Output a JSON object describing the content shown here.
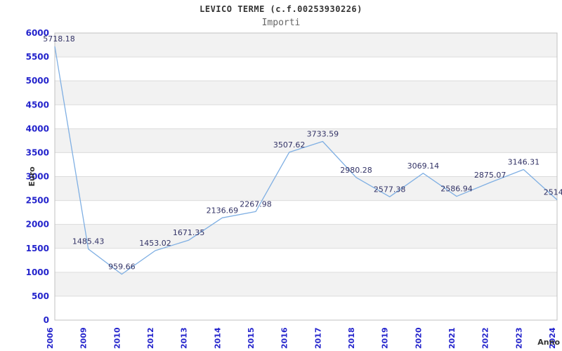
{
  "chart_data": {
    "type": "line",
    "title": "LEVICO TERME (c.f.00253930226)",
    "subtitle": "Importi",
    "xlabel": "Anno",
    "ylabel": "Euro",
    "categories": [
      "2006",
      "2009",
      "2010",
      "2012",
      "2013",
      "2014",
      "2015",
      "2016",
      "2017",
      "2018",
      "2019",
      "2020",
      "2021",
      "2022",
      "2023",
      "2024"
    ],
    "values": [
      5718.18,
      1485.43,
      959.66,
      1453.02,
      1671.35,
      2136.69,
      2267.98,
      3507.62,
      3733.59,
      2980.28,
      2577.38,
      3069.14,
      2586.94,
      2875.07,
      3146.31,
      2514.0
    ],
    "point_labels": [
      "5718.18",
      "1485.43",
      "959.66",
      "1453.02",
      "1671.35",
      "2136.69",
      "2267.98",
      "3507.62",
      "3733.59",
      "2980.28",
      "2577.38",
      "3069.14",
      "2586.94",
      "2875.07",
      "3146.31",
      "2514.0"
    ],
    "y_ticks": [
      0,
      500,
      1000,
      1500,
      2000,
      2500,
      3000,
      3500,
      4000,
      4500,
      5000,
      5500,
      6000
    ],
    "ylim": [
      0,
      6000
    ],
    "grid": true,
    "legend": "none",
    "colors": {
      "line": "#7fafe3",
      "tick_label": "#2424cc",
      "point_label": "#333366",
      "band": "#f2f2f2",
      "gridline": "#dcdcdc",
      "border": "#c0c0c0",
      "title": "#333333",
      "subtitle": "#666666",
      "axis_label": "#333333",
      "background": "#ffffff"
    }
  }
}
